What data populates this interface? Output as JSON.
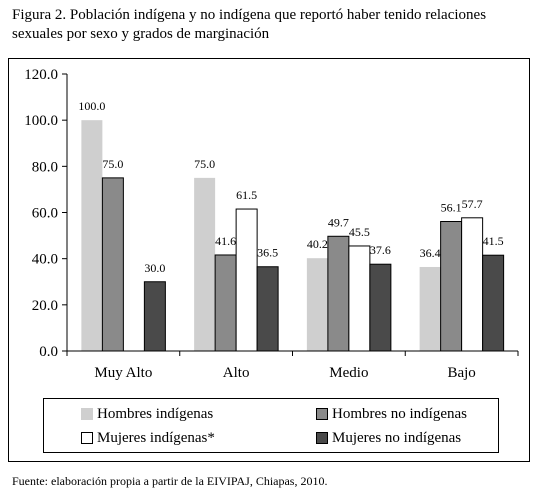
{
  "title": "Figura 2. Población indígena y no indígena que reportó haber tenido relaciones sexuales por sexo y grados de marginación",
  "source": "Fuente: elaboración propia a partir de la EIVIPAJ, Chiapas, 2010.",
  "chart_data": {
    "type": "bar",
    "categories": [
      "Muy Alto",
      "Alto",
      "Medio",
      "Bajo"
    ],
    "series": [
      {
        "name": "Hombres indígenas",
        "color": "#cfcfcf",
        "values": [
          100.0,
          75.0,
          40.2,
          36.4
        ],
        "labels": [
          "100.0",
          "75.0",
          "40.2",
          "36.4"
        ]
      },
      {
        "name": "Hombres no indígenas",
        "color": "#8a8a8a",
        "values": [
          75.0,
          41.6,
          49.7,
          56.1
        ],
        "labels": [
          "75.0",
          "41.6",
          "49.7",
          "56.1"
        ]
      },
      {
        "name": "Mujeres indígenas*",
        "color": "#ffffff",
        "values": [
          null,
          61.5,
          45.5,
          57.7
        ],
        "labels": [
          "",
          "61.5",
          "45.5",
          "57.7"
        ]
      },
      {
        "name": "Mujeres no indígenas",
        "color": "#4a4a4a",
        "values": [
          30.0,
          36.5,
          37.6,
          41.5
        ],
        "labels": [
          "30.0",
          "36.5",
          "37.6",
          "41.5"
        ]
      }
    ],
    "yticks": [
      "0.0",
      "20.0",
      "40.0",
      "60.0",
      "80.0",
      "100.0",
      "120.0"
    ],
    "ylim": [
      0,
      120
    ],
    "grid": false,
    "legend_position": "bottom"
  }
}
